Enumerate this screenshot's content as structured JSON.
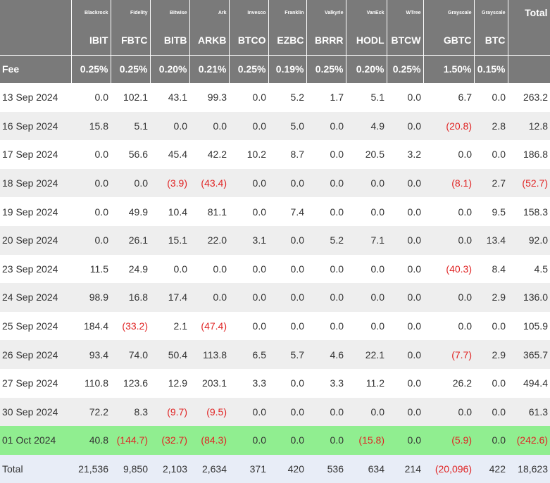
{
  "table": {
    "issuers": [
      "Blackrock",
      "Fidelity",
      "Bitwise",
      "Ark",
      "Invesco",
      "Franklin",
      "Valkyrie",
      "VanEck",
      "WTree",
      "Grayscale",
      "Grayscale"
    ],
    "total_header": "Total",
    "tickers": [
      "IBIT",
      "FBTC",
      "BITB",
      "ARKB",
      "BTCO",
      "EZBC",
      "BRRR",
      "HODL",
      "BTCW",
      "GBTC",
      "BTC"
    ],
    "fee_label": "Fee",
    "fees": [
      "0.25%",
      "0.25%",
      "0.20%",
      "0.21%",
      "0.25%",
      "0.19%",
      "0.25%",
      "0.20%",
      "0.25%",
      "1.50%",
      "0.15%"
    ],
    "rows": [
      {
        "date": "13 Sep 2024",
        "values": [
          "0.0",
          "102.1",
          "43.1",
          "99.3",
          "0.0",
          "5.2",
          "1.7",
          "5.1",
          "0.0",
          "6.7",
          "0.0"
        ],
        "total": "263.2"
      },
      {
        "date": "16 Sep 2024",
        "values": [
          "15.8",
          "5.1",
          "0.0",
          "0.0",
          "0.0",
          "5.0",
          "0.0",
          "4.9",
          "0.0",
          "(20.8)",
          "2.8"
        ],
        "total": "12.8"
      },
      {
        "date": "17 Sep 2024",
        "values": [
          "0.0",
          "56.6",
          "45.4",
          "42.2",
          "10.2",
          "8.7",
          "0.0",
          "20.5",
          "3.2",
          "0.0",
          "0.0"
        ],
        "total": "186.8"
      },
      {
        "date": "18 Sep 2024",
        "values": [
          "0.0",
          "0.0",
          "(3.9)",
          "(43.4)",
          "0.0",
          "0.0",
          "0.0",
          "0.0",
          "0.0",
          "(8.1)",
          "2.7"
        ],
        "total": "(52.7)"
      },
      {
        "date": "19 Sep 2024",
        "values": [
          "0.0",
          "49.9",
          "10.4",
          "81.1",
          "0.0",
          "7.4",
          "0.0",
          "0.0",
          "0.0",
          "0.0",
          "9.5"
        ],
        "total": "158.3"
      },
      {
        "date": "20 Sep 2024",
        "values": [
          "0.0",
          "26.1",
          "15.1",
          "22.0",
          "3.1",
          "0.0",
          "5.2",
          "7.1",
          "0.0",
          "0.0",
          "13.4"
        ],
        "total": "92.0"
      },
      {
        "date": "23 Sep 2024",
        "values": [
          "11.5",
          "24.9",
          "0.0",
          "0.0",
          "0.0",
          "0.0",
          "0.0",
          "0.0",
          "0.0",
          "(40.3)",
          "8.4"
        ],
        "total": "4.5"
      },
      {
        "date": "24 Sep 2024",
        "values": [
          "98.9",
          "16.8",
          "17.4",
          "0.0",
          "0.0",
          "0.0",
          "0.0",
          "0.0",
          "0.0",
          "0.0",
          "2.9"
        ],
        "total": "136.0"
      },
      {
        "date": "25 Sep 2024",
        "values": [
          "184.4",
          "(33.2)",
          "2.1",
          "(47.4)",
          "0.0",
          "0.0",
          "0.0",
          "0.0",
          "0.0",
          "0.0",
          "0.0"
        ],
        "total": "105.9"
      },
      {
        "date": "26 Sep 2024",
        "values": [
          "93.4",
          "74.0",
          "50.4",
          "113.8",
          "6.5",
          "5.7",
          "4.6",
          "22.1",
          "0.0",
          "(7.7)",
          "2.9"
        ],
        "total": "365.7"
      },
      {
        "date": "27 Sep 2024",
        "values": [
          "110.8",
          "123.6",
          "12.9",
          "203.1",
          "3.3",
          "0.0",
          "3.3",
          "11.2",
          "0.0",
          "26.2",
          "0.0"
        ],
        "total": "494.4"
      },
      {
        "date": "30 Sep 2024",
        "values": [
          "72.2",
          "8.3",
          "(9.7)",
          "(9.5)",
          "0.0",
          "0.0",
          "0.0",
          "0.0",
          "0.0",
          "0.0",
          "0.0"
        ],
        "total": "61.3"
      },
      {
        "date": "01 Oct 2024",
        "values": [
          "40.8",
          "(144.7)",
          "(32.7)",
          "(84.3)",
          "0.0",
          "0.0",
          "0.0",
          "(15.8)",
          "0.0",
          "(5.9)",
          "0.0"
        ],
        "total": "(242.6)",
        "highlight": true
      }
    ],
    "totals_label": "Total",
    "totals": [
      "21,536",
      "9,850",
      "2,103",
      "2,634",
      "371",
      "420",
      "536",
      "634",
      "214",
      "(20,096)",
      "422"
    ],
    "grand_total": "18,623"
  },
  "colors": {
    "header_bg": "#7a7a7a",
    "alt_row_bg": "#eeeeee",
    "highlight_bg": "#90ee90",
    "total_row_bg": "#e8edf7",
    "negative": "#e02424",
    "text": "#333333"
  }
}
